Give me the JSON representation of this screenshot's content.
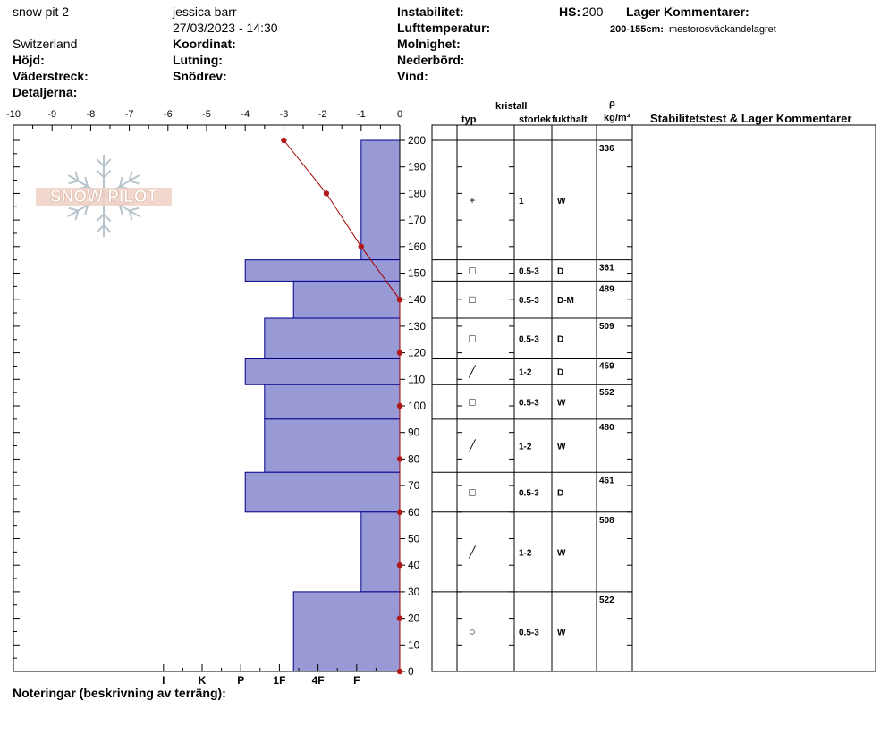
{
  "header": {
    "pit_name": "snow pit 2",
    "observer": "jessica barr",
    "datetime": "27/03/2023 - 14:30",
    "location": "Switzerland",
    "labels": {
      "instabilitet": "Instabilitet:",
      "hs": "HS:",
      "lager_kommentarer": "Lager Kommentarer:",
      "lufttemperatur": "Lufttemperatur:",
      "koordinat": "Koordinat:",
      "molnighet": "Molnighet:",
      "hojd": "Höjd:",
      "lutning": "Lutning:",
      "nederbord": "Nederbörd:",
      "vaderstreck": "Väderstreck:",
      "snodrev": "Snödrev:",
      "vind": "Vind:",
      "detaljerna": "Detaljerna:"
    },
    "hs_value": "200",
    "layer_comment_range": "200-155cm:",
    "layer_comment_text": "mestorosväckandelagret"
  },
  "table_headers": {
    "kristall": "kristall",
    "typ": "typ",
    "storlek": "storlek",
    "fukthalt": "fukthalt",
    "rho": "ρ",
    "density_unit": "kg/m³",
    "stability": "Stabilitetstest & Lager Kommentarer"
  },
  "notes_label": "Noteringar (beskrivning av terräng):",
  "logo_text": "SNOW PILOT",
  "colors": {
    "hardness_fill": "#9999d6",
    "hardness_stroke": "#00008b",
    "temp_line": "#a00000",
    "temp_point": "#b01818"
  },
  "chart_data": {
    "type": "snow-profile",
    "temperature_axis": {
      "range": [
        -10,
        0
      ],
      "ticks": [
        "-10",
        "-9",
        "-8",
        "-7",
        "-6",
        "-5",
        "-4",
        "-3",
        "-2",
        "-1",
        "0"
      ]
    },
    "height_axis": {
      "range": [
        0,
        200
      ],
      "ticks": [
        "0",
        "10",
        "20",
        "30",
        "40",
        "50",
        "60",
        "70",
        "80",
        "90",
        "100",
        "110",
        "120",
        "130",
        "140",
        "150",
        "160",
        "170",
        "180",
        "190",
        "200"
      ]
    },
    "hardness_axis": {
      "labels": [
        "I",
        "K",
        "P",
        "1F",
        "4F",
        "F"
      ],
      "scale_values": [
        6,
        5,
        4,
        3,
        2,
        1
      ]
    },
    "temperature_profile": [
      {
        "height": 200,
        "temp": -3.0
      },
      {
        "height": 180,
        "temp": -1.9
      },
      {
        "height": 160,
        "temp": -1.0
      },
      {
        "height": 140,
        "temp": 0
      },
      {
        "height": 120,
        "temp": 0
      },
      {
        "height": 100,
        "temp": 0
      },
      {
        "height": 80,
        "temp": 0
      },
      {
        "height": 60,
        "temp": 0
      },
      {
        "height": 40,
        "temp": 0
      },
      {
        "height": 20,
        "temp": 0
      },
      {
        "height": 0,
        "temp": 0
      }
    ],
    "layers": [
      {
        "top": 200,
        "bottom": 155,
        "hardness": 1,
        "type": "+",
        "size": "1",
        "moisture": "W",
        "density": "336"
      },
      {
        "top": 155,
        "bottom": 147,
        "hardness": 4,
        "type": "□",
        "size": "0.5-3",
        "moisture": "D",
        "density": "361"
      },
      {
        "top": 147,
        "bottom": 133,
        "hardness": 2.75,
        "type": "□",
        "size": "0.5-3",
        "moisture": "D-M",
        "density": "489"
      },
      {
        "top": 133,
        "bottom": 118,
        "hardness": 3.5,
        "type": "□",
        "size": "0.5-3",
        "moisture": "D",
        "density": "509"
      },
      {
        "top": 118,
        "bottom": 108,
        "hardness": 4,
        "type": "╱",
        "size": "1-2",
        "moisture": "D",
        "density": "459"
      },
      {
        "top": 108,
        "bottom": 95,
        "hardness": 3.5,
        "type": "□",
        "size": "0.5-3",
        "moisture": "W",
        "density": "552"
      },
      {
        "top": 95,
        "bottom": 75,
        "hardness": 3.5,
        "type": "╱",
        "size": "1-2",
        "moisture": "W",
        "density": "480"
      },
      {
        "top": 75,
        "bottom": 60,
        "hardness": 4,
        "type": "□",
        "size": "0.5-3",
        "moisture": "D",
        "density": "461"
      },
      {
        "top": 60,
        "bottom": 30,
        "hardness": 1,
        "type": "╱",
        "size": "1-2",
        "moisture": "W",
        "density": "508"
      },
      {
        "top": 30,
        "bottom": 0,
        "hardness": 2.75,
        "type": "○",
        "size": "0.5-3",
        "moisture": "W",
        "density": "522"
      }
    ]
  }
}
